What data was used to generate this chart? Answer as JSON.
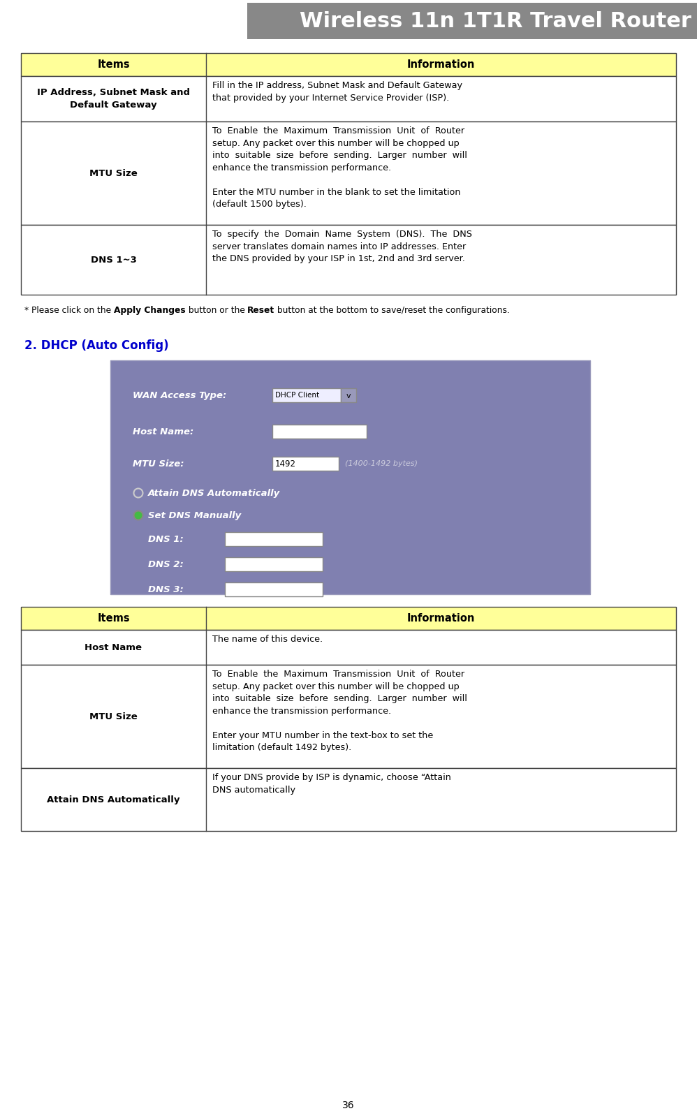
{
  "title": "Wireless 11n 1T1R Travel Router",
  "title_color": "#ffffff",
  "title_fontsize": 22,
  "page_number": "36",
  "table_header_bg": "#ffff99",
  "table_border": "#555555",
  "table1_rows": [
    {
      "item": "IP Address, Subnet Mask and\nDefault Gateway",
      "info": "Fill in the IP address, Subnet Mask and Default Gateway\nthat provided by your Internet Service Provider (ISP).",
      "rh": 65
    },
    {
      "item": "MTU Size",
      "info": "To  Enable  the  Maximum  Transmission  Unit  of  Router\nsetup. Any packet over this number will be chopped up\ninto  suitable  size  before  sending.  Larger  number  will\nenhance the transmission performance.\n\nEnter the MTU number in the blank to set the limitation\n(default 1500 bytes).",
      "rh": 148
    },
    {
      "item": "DNS 1~3",
      "info": "To  specify  the  Domain  Name  System  (DNS).  The  DNS\nserver translates domain names into IP addresses. Enter\nthe DNS provided by your ISP in 1st, 2nd and 3rd server.",
      "rh": 100
    }
  ],
  "section2_title": "2. DHCP (Auto Config)",
  "section2_color": "#0000cc",
  "ui_bg": "#8080b0",
  "table2_rows": [
    {
      "item": "Host Name",
      "info": "The name of this device.",
      "rh": 50
    },
    {
      "item": "MTU Size",
      "info": "To  Enable  the  Maximum  Transmission  Unit  of  Router\nsetup. Any packet over this number will be chopped up\ninto  suitable  size  before  sending.  Larger  number  will\nenhance the transmission performance.\n\nEnter your MTU number in the text-box to set the\nlimitation (default 1492 bytes).",
      "rh": 148
    },
    {
      "item": "Attain DNS Automatically",
      "info": "If your DNS provide by ISP is dynamic, choose “Attain\nDNS automatically",
      "rh": 90
    }
  ]
}
